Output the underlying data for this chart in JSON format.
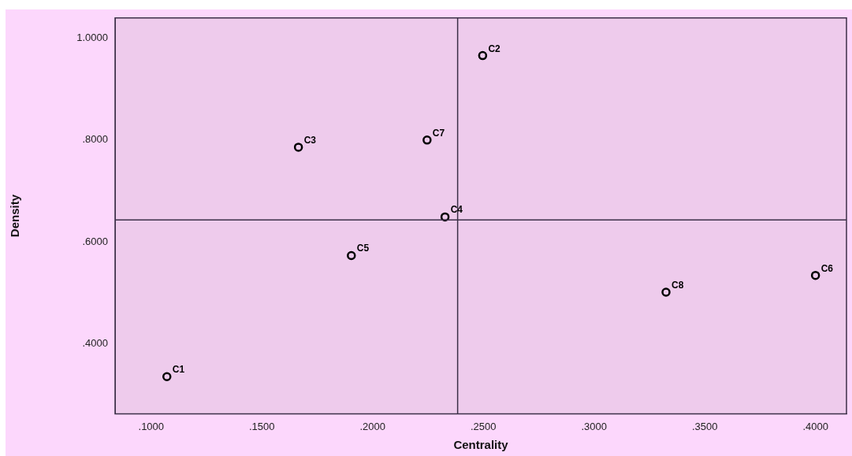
{
  "chart_data": {
    "type": "scatter",
    "xlabel": "Centrality",
    "ylabel": "Density",
    "x": [
      0.1071,
      0.2497,
      0.1665,
      0.2327,
      0.1904,
      0.4,
      0.2246,
      0.3325
    ],
    "series": [
      {
        "color": "#000000",
        "values": [
          0.335,
          0.966,
          0.786,
          0.649,
          0.573,
          0.534,
          0.8,
          0.501
        ]
      }
    ],
    "xlim": [
      0.0837,
      0.414
    ],
    "ylim": [
      0.262,
      1.04
    ],
    "xticks": [
      {
        "value": 0.1,
        "label": ".1000"
      },
      {
        "value": 0.15,
        "label": ".1500"
      },
      {
        "value": 0.2,
        "label": ".2000"
      },
      {
        "value": 0.25,
        "label": ".2500"
      },
      {
        "value": 0.3,
        "label": ".3000"
      },
      {
        "value": 0.35,
        "label": ".3500"
      },
      {
        "value": 0.4,
        "label": ".4000"
      }
    ],
    "yticks": [
      {
        "value": 0.4,
        "label": ".4000"
      },
      {
        "value": 0.6,
        "label": ".6000"
      },
      {
        "value": 0.8,
        "label": ".8000"
      },
      {
        "value": 1,
        "label": "1.0000"
      }
    ],
    "ref_lines": [
      {
        "axis": "x",
        "value": 0.2384,
        "color": "#3c3048"
      },
      {
        "axis": "y",
        "value": 0.643,
        "color": "#3c3048"
      }
    ],
    "annotations": [
      {
        "text": "C1",
        "x": 0.1071,
        "y": 0.335
      },
      {
        "text": "C2",
        "x": 0.2497,
        "y": 0.966
      },
      {
        "text": "C3",
        "x": 0.1665,
        "y": 0.786
      },
      {
        "text": "C4",
        "x": 0.2327,
        "y": 0.649
      },
      {
        "text": "C5",
        "x": 0.1904,
        "y": 0.573
      },
      {
        "text": "C6",
        "x": 0.4,
        "y": 0.534
      },
      {
        "text": "C7",
        "x": 0.2246,
        "y": 0.8
      },
      {
        "text": "C8",
        "x": 0.3325,
        "y": 0.501
      }
    ],
    "marker": "circle",
    "grid": false,
    "legend": false
  }
}
